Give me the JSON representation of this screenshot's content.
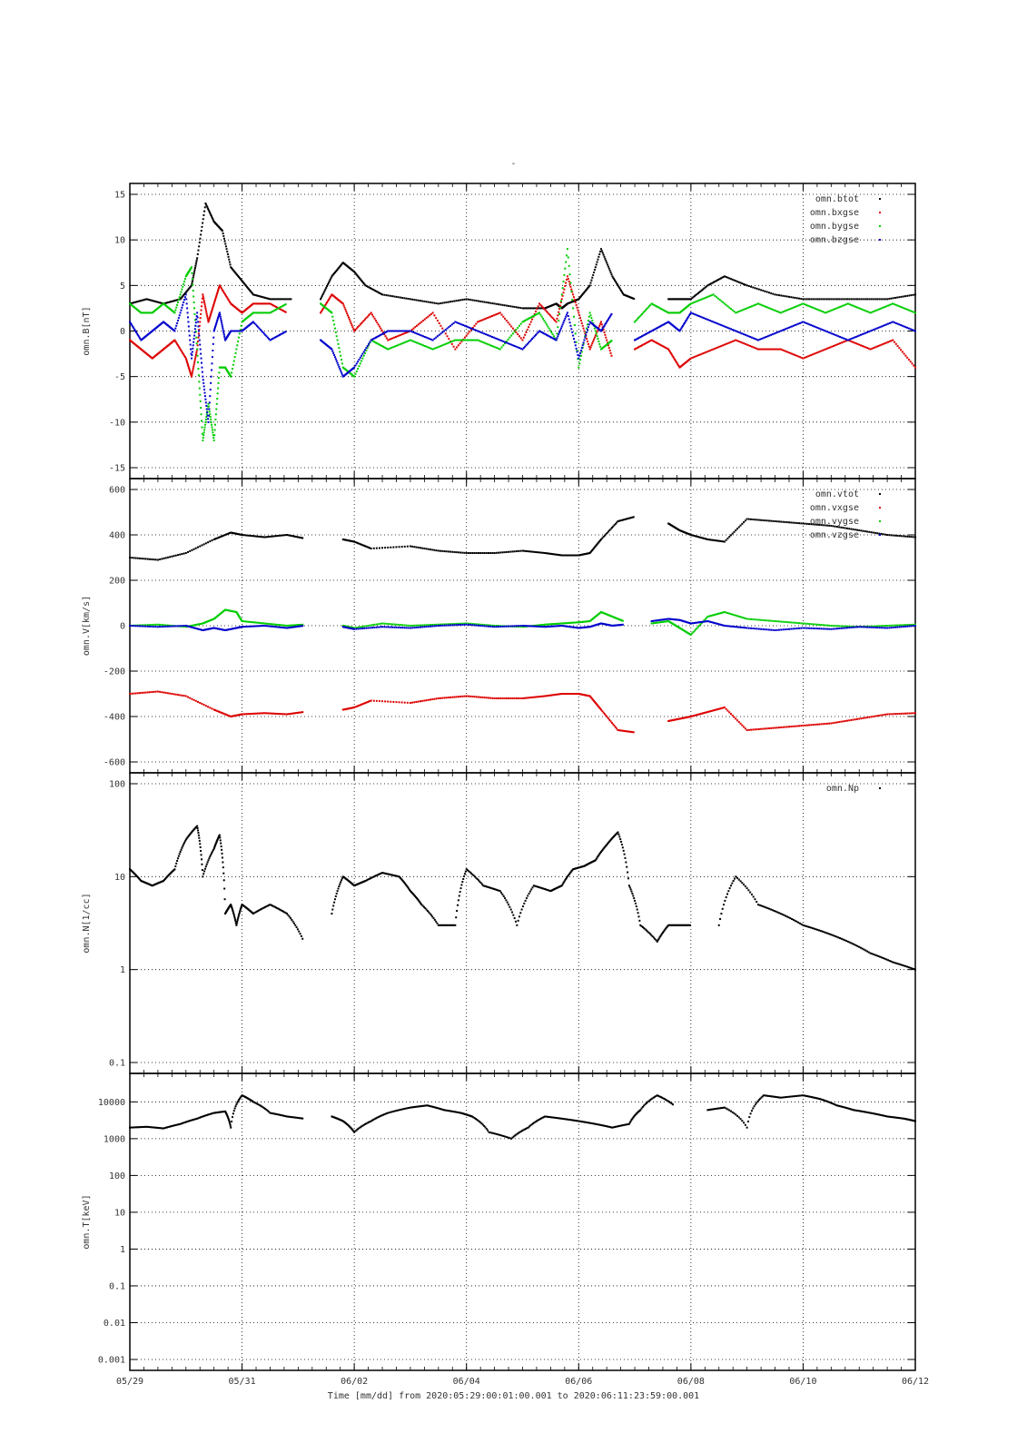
{
  "title": "-",
  "xaxis": {
    "label": "Time [mm/dd]  from 2020:05:29:00:01:00.001  to  2020:06:11:23:59:00.001",
    "ticks": [
      "05/29",
      "05/31",
      "06/02",
      "06/04",
      "06/06",
      "06/08",
      "06/10",
      "06/12"
    ],
    "range_days": [
      0,
      14
    ],
    "tick_days": [
      0,
      2,
      4,
      6,
      8,
      10,
      12,
      14
    ]
  },
  "colors": {
    "black": "#000000",
    "red": "#dd0000",
    "green": "#00cc00",
    "blue": "#0000cc"
  },
  "chart_data": [
    {
      "id": "B",
      "type": "scatter",
      "ylabel": "omn.B[nT]",
      "ylim": [
        -15,
        15
      ],
      "yticks": [
        15,
        10,
        5,
        0,
        -5,
        -10,
        -15
      ],
      "yscale": "linear",
      "grid": true,
      "legend_position": "top-right",
      "series": [
        {
          "name": "omn.btot",
          "color": "#000000",
          "x": [
            0,
            0.3,
            0.6,
            0.9,
            1.1,
            1.2,
            1.35,
            1.5,
            1.65,
            1.8,
            2.0,
            2.2,
            2.5,
            2.9,
            3.2,
            3.4,
            3.6,
            3.8,
            4.0,
            4.2,
            4.5,
            5.0,
            5.5,
            6.0,
            6.5,
            7.0,
            7.4,
            7.6,
            7.7,
            7.8,
            8.0,
            8.2,
            8.4,
            8.6,
            8.8,
            9.0,
            9.3,
            9.6,
            9.8,
            10.0,
            10.3,
            10.6,
            11.0,
            11.5,
            12.0,
            12.5,
            13.0,
            13.5,
            14.0
          ],
          "y": [
            3,
            3.5,
            3,
            3.5,
            5,
            8,
            14,
            12,
            11,
            7,
            5.5,
            4,
            3.5,
            3.5,
            null,
            3.5,
            6,
            7.5,
            6.5,
            5,
            4,
            3.5,
            3,
            3.5,
            3,
            2.5,
            2.5,
            3,
            2.5,
            3,
            3.5,
            5,
            9,
            6,
            4,
            3.5,
            null,
            3.5,
            3.5,
            3.5,
            5,
            6,
            5,
            4,
            3.5,
            3.5,
            3.5,
            3.5,
            4
          ]
        },
        {
          "name": "omn.bxgse",
          "color": "#dd0000",
          "x": [
            0,
            0.2,
            0.4,
            0.6,
            0.8,
            1.0,
            1.1,
            1.2,
            1.3,
            1.4,
            1.5,
            1.6,
            1.8,
            2.0,
            2.2,
            2.5,
            2.8,
            3.2,
            3.4,
            3.6,
            3.8,
            4.0,
            4.3,
            4.6,
            5.0,
            5.4,
            5.8,
            6.2,
            6.6,
            7.0,
            7.3,
            7.6,
            7.8,
            8.0,
            8.2,
            8.4,
            8.6,
            8.8,
            9.0,
            9.3,
            9.6,
            9.8,
            10.0,
            10.4,
            10.8,
            11.2,
            11.6,
            12.0,
            12.4,
            12.8,
            13.2,
            13.6,
            14.0
          ],
          "y": [
            -1,
            -2,
            -3,
            -2,
            -1,
            -3,
            -5,
            -2,
            4,
            1,
            3,
            5,
            3,
            2,
            3,
            3,
            2,
            null,
            2,
            4,
            3,
            0,
            2,
            -1,
            0,
            2,
            -2,
            1,
            2,
            -1,
            3,
            1,
            6,
            2,
            -2,
            1,
            -3,
            null,
            -2,
            -1,
            -2,
            -4,
            -3,
            -2,
            -1,
            -2,
            -2,
            -3,
            -2,
            -1,
            -2,
            -1,
            -4
          ]
        },
        {
          "name": "omn.bygse",
          "color": "#00cc00",
          "x": [
            0,
            0.2,
            0.4,
            0.6,
            0.8,
            1.0,
            1.1,
            1.2,
            1.3,
            1.4,
            1.5,
            1.6,
            1.7,
            1.8,
            2.0,
            2.2,
            2.5,
            2.8,
            3.2,
            3.4,
            3.6,
            3.8,
            4.0,
            4.3,
            4.6,
            5.0,
            5.4,
            5.8,
            6.2,
            6.6,
            7.0,
            7.3,
            7.6,
            7.8,
            8.0,
            8.2,
            8.4,
            8.6,
            8.8,
            9.0,
            9.3,
            9.6,
            9.8,
            10.0,
            10.4,
            10.8,
            11.2,
            11.6,
            12.0,
            12.4,
            12.8,
            13.2,
            13.6,
            14.0
          ],
          "y": [
            3,
            2,
            2,
            3,
            2,
            6,
            7,
            -2,
            -12,
            -8,
            -12,
            -4,
            -4,
            -5,
            1,
            2,
            2,
            3,
            null,
            3,
            2,
            -4,
            -5,
            -1,
            -2,
            -1,
            -2,
            -1,
            -1,
            -2,
            1,
            2,
            -1,
            9,
            -4,
            2,
            -2,
            -1,
            null,
            1,
            3,
            2,
            2,
            3,
            4,
            2,
            3,
            2,
            3,
            2,
            3,
            2,
            3,
            2
          ]
        },
        {
          "name": "omn.bzgse",
          "color": "#0000cc",
          "x": [
            0,
            0.2,
            0.4,
            0.6,
            0.8,
            1.0,
            1.1,
            1.2,
            1.3,
            1.4,
            1.5,
            1.6,
            1.7,
            1.8,
            2.0,
            2.2,
            2.5,
            2.8,
            3.2,
            3.4,
            3.6,
            3.8,
            4.0,
            4.3,
            4.6,
            5.0,
            5.4,
            5.8,
            6.2,
            6.6,
            7.0,
            7.3,
            7.6,
            7.8,
            8.0,
            8.2,
            8.4,
            8.6,
            8.8,
            9.0,
            9.3,
            9.6,
            9.8,
            10.0,
            10.4,
            10.8,
            11.2,
            11.6,
            12.0,
            12.4,
            12.8,
            13.2,
            13.6,
            14.0
          ],
          "y": [
            1,
            -1,
            0,
            1,
            0,
            4,
            -3,
            2,
            -5,
            -10,
            0,
            2,
            -1,
            0,
            0,
            1,
            -1,
            0,
            null,
            -1,
            -2,
            -5,
            -4,
            -1,
            0,
            0,
            -1,
            1,
            0,
            -1,
            -2,
            0,
            -1,
            2,
            -3,
            1,
            0,
            2,
            null,
            -1,
            0,
            1,
            0,
            2,
            1,
            0,
            -1,
            0,
            1,
            0,
            -1,
            0,
            1,
            0
          ]
        }
      ]
    },
    {
      "id": "V",
      "type": "scatter",
      "ylabel": "omn.V[km/s]",
      "ylim": [
        -600,
        600
      ],
      "yticks": [
        600,
        400,
        200,
        0,
        -200,
        -400,
        -600
      ],
      "yscale": "linear",
      "grid": true,
      "legend_position": "top-right",
      "series": [
        {
          "name": "omn.vtot",
          "color": "#000000",
          "x": [
            0,
            0.5,
            1.0,
            1.5,
            1.8,
            2.0,
            2.4,
            2.8,
            3.1,
            3.4,
            3.8,
            4.0,
            4.3,
            5.0,
            5.5,
            6.0,
            6.5,
            7.0,
            7.4,
            7.7,
            8.0,
            8.2,
            8.4,
            8.7,
            9.0,
            9.3,
            9.6,
            9.8,
            10.0,
            10.3,
            10.6,
            11.0,
            11.5,
            12.0,
            12.5,
            13.0,
            13.5,
            14.0
          ],
          "y": [
            300,
            290,
            320,
            380,
            410,
            400,
            390,
            400,
            385,
            null,
            380,
            370,
            340,
            350,
            330,
            320,
            320,
            330,
            320,
            310,
            310,
            320,
            380,
            460,
            480,
            null,
            450,
            420,
            400,
            380,
            370,
            470,
            460,
            450,
            440,
            420,
            400,
            390
          ]
        },
        {
          "name": "omn.vxgse",
          "color": "#dd0000",
          "x": [
            0,
            0.5,
            1.0,
            1.5,
            1.8,
            2.0,
            2.4,
            2.8,
            3.1,
            3.4,
            3.8,
            4.0,
            4.3,
            5.0,
            5.5,
            6.0,
            6.5,
            7.0,
            7.4,
            7.7,
            8.0,
            8.2,
            8.4,
            8.7,
            9.0,
            9.3,
            9.6,
            9.8,
            10.0,
            10.3,
            10.6,
            11.0,
            11.5,
            12.0,
            12.5,
            13.0,
            13.5,
            14.0
          ],
          "y": [
            -300,
            -290,
            -310,
            -370,
            -400,
            -390,
            -385,
            -390,
            -380,
            null,
            -370,
            -360,
            -330,
            -340,
            -320,
            -310,
            -320,
            -320,
            -310,
            -300,
            -300,
            -310,
            -370,
            -460,
            -470,
            null,
            -420,
            -410,
            -400,
            -380,
            -360,
            -460,
            -450,
            -440,
            -430,
            -410,
            -390,
            -385
          ]
        },
        {
          "name": "omn.vygse",
          "color": "#00cc00",
          "x": [
            0,
            0.5,
            1.0,
            1.3,
            1.5,
            1.7,
            1.9,
            2.0,
            2.4,
            2.8,
            3.1,
            3.4,
            3.8,
            4.0,
            4.5,
            5.0,
            5.5,
            6.0,
            6.5,
            7.0,
            7.4,
            7.7,
            8.0,
            8.2,
            8.4,
            8.6,
            8.8,
            9.0,
            9.3,
            9.6,
            9.8,
            10.0,
            10.3,
            10.6,
            11.0,
            11.5,
            12.0,
            12.5,
            13.0,
            13.5,
            14.0
          ],
          "y": [
            0,
            5,
            -5,
            10,
            30,
            70,
            60,
            20,
            10,
            0,
            5,
            null,
            0,
            -10,
            10,
            0,
            5,
            10,
            0,
            -5,
            5,
            10,
            15,
            20,
            60,
            40,
            20,
            null,
            10,
            20,
            -10,
            -40,
            40,
            60,
            30,
            20,
            10,
            0,
            -5,
            0,
            5
          ]
        },
        {
          "name": "omn.vzgse",
          "color": "#0000cc",
          "x": [
            0,
            0.5,
            1.0,
            1.3,
            1.5,
            1.7,
            1.9,
            2.0,
            2.4,
            2.8,
            3.1,
            3.4,
            3.8,
            4.0,
            4.5,
            5.0,
            5.5,
            6.0,
            6.5,
            7.0,
            7.4,
            7.7,
            8.0,
            8.2,
            8.4,
            8.6,
            8.8,
            9.0,
            9.3,
            9.6,
            9.8,
            10.0,
            10.3,
            10.6,
            11.0,
            11.5,
            12.0,
            12.5,
            13.0,
            13.5,
            14.0
          ],
          "y": [
            0,
            -5,
            0,
            -20,
            -10,
            -20,
            -10,
            -5,
            0,
            -10,
            0,
            null,
            -5,
            -15,
            -5,
            -10,
            0,
            5,
            -5,
            0,
            -5,
            0,
            -10,
            -5,
            10,
            0,
            5,
            null,
            20,
            30,
            25,
            10,
            20,
            0,
            -10,
            -20,
            -10,
            -15,
            -5,
            -10,
            0
          ]
        }
      ]
    },
    {
      "id": "N",
      "type": "scatter",
      "ylabel": "omn.N[1/cc]",
      "ylim": [
        0.1,
        100
      ],
      "yticks": [
        100,
        10,
        1,
        0.1
      ],
      "yscale": "log",
      "grid": true,
      "legend_position": "top-right",
      "series": [
        {
          "name": "omn.Np",
          "color": "#000000",
          "x": [
            0,
            0.2,
            0.4,
            0.6,
            0.8,
            1.0,
            1.2,
            1.3,
            1.5,
            1.6,
            1.7,
            1.8,
            1.9,
            2.0,
            2.2,
            2.5,
            2.8,
            3.1,
            3.4,
            3.6,
            3.8,
            4.0,
            4.2,
            4.5,
            4.8,
            5.0,
            5.2,
            5.5,
            5.8,
            6.0,
            6.3,
            6.6,
            6.9,
            7.2,
            7.5,
            7.7,
            7.9,
            8.1,
            8.3,
            8.5,
            8.7,
            8.9,
            9.1,
            9.4,
            9.6,
            9.8,
            10.0,
            10.2,
            10.5,
            10.8,
            11.2,
            11.6,
            12.0,
            12.4,
            12.8,
            13.2,
            13.6,
            14.0
          ],
          "y": [
            12,
            9,
            8,
            9,
            12,
            25,
            35,
            10,
            20,
            28,
            4,
            5,
            3,
            5,
            4,
            5,
            4,
            2,
            null,
            4,
            10,
            8,
            9,
            11,
            10,
            7,
            5,
            3,
            3,
            12,
            8,
            7,
            3,
            8,
            7,
            8,
            12,
            13,
            15,
            22,
            30,
            8,
            3,
            2,
            3,
            3,
            3,
            null,
            3,
            10,
            5,
            4,
            3,
            2.5,
            2,
            1.5,
            1.2,
            1.0
          ]
        }
      ]
    },
    {
      "id": "T",
      "type": "scatter",
      "ylabel": "omn.T[keV]",
      "ylim": [
        0.001,
        30000
      ],
      "yticks": [
        10000,
        1000,
        100,
        10,
        1,
        0.1,
        0.01,
        0.001
      ],
      "yscale": "log",
      "grid": true,
      "legend_position": "none",
      "series": [
        {
          "name": "omn.T",
          "color": "#000000",
          "x": [
            0,
            0.3,
            0.6,
            0.9,
            1.2,
            1.5,
            1.7,
            1.8,
            2.0,
            2.2,
            2.5,
            2.8,
            3.1,
            3.4,
            3.6,
            3.8,
            4.0,
            4.3,
            4.6,
            5.0,
            5.3,
            5.6,
            5.9,
            6.1,
            6.4,
            6.8,
            7.1,
            7.4,
            7.7,
            8.0,
            8.3,
            8.6,
            8.9,
            9.1,
            9.4,
            9.7,
            10.0,
            10.3,
            10.6,
            11.0,
            11.3,
            11.6,
            12.0,
            12.3,
            12.6,
            12.9,
            13.2,
            13.5,
            13.8,
            14.0
          ],
          "y": [
            2000,
            2100,
            1900,
            2500,
            3500,
            5000,
            5500,
            2000,
            15000,
            10000,
            5000,
            4000,
            3500,
            null,
            4000,
            3000,
            1500,
            3000,
            5000,
            7000,
            8000,
            6000,
            5000,
            4000,
            1500,
            1000,
            2000,
            4000,
            3500,
            3000,
            2500,
            2000,
            2500,
            6000,
            15000,
            8000,
            null,
            6000,
            7000,
            2000,
            15000,
            13000,
            15000,
            12000,
            8000,
            6000,
            5000,
            4000,
            3500,
            3000
          ]
        }
      ]
    }
  ]
}
